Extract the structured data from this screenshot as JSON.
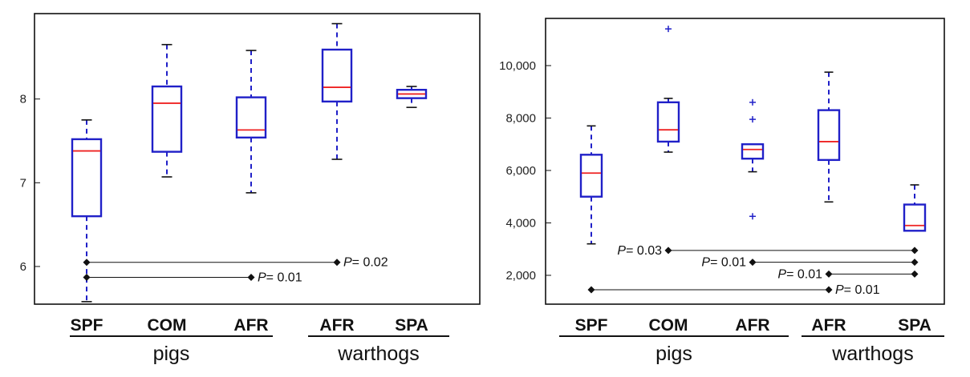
{
  "chart_data": [
    {
      "type": "box",
      "ylim": [
        5.55,
        9.02
      ],
      "yticks": [
        {
          "value": 6,
          "label": "6"
        },
        {
          "value": 7,
          "label": "7"
        },
        {
          "value": 8,
          "label": "8"
        }
      ],
      "categories": [
        "SPF",
        "COM",
        "AFR",
        "AFR",
        "SPA"
      ],
      "groups": [
        {
          "label": "pigs",
          "from": 0,
          "to": 2
        },
        {
          "label": "warthogs",
          "from": 3,
          "to": 4
        }
      ],
      "boxes": [
        {
          "whisker_low": 5.58,
          "q1": 6.6,
          "median": 7.38,
          "q3": 7.52,
          "whisker_high": 7.75,
          "outliers": []
        },
        {
          "whisker_low": 7.07,
          "q1": 7.37,
          "median": 7.95,
          "q3": 8.15,
          "whisker_high": 8.65,
          "outliers": []
        },
        {
          "whisker_low": 6.88,
          "q1": 7.54,
          "median": 7.63,
          "q3": 8.02,
          "whisker_high": 8.58,
          "outliers": []
        },
        {
          "whisker_low": 7.28,
          "q1": 7.97,
          "median": 8.14,
          "q3": 8.59,
          "whisker_high": 8.9,
          "outliers": []
        },
        {
          "whisker_low": 7.9,
          "q1": 8.01,
          "median": 8.06,
          "q3": 8.11,
          "whisker_high": 8.15,
          "outliers": []
        }
      ],
      "comparisons": [
        {
          "from": 0,
          "to": 3,
          "y": 6.05,
          "p_prefix": "P",
          "p_value": "= 0.02",
          "label_side": "right"
        },
        {
          "from": 0,
          "to": 2,
          "y": 5.87,
          "p_prefix": "P",
          "p_value": "= 0.01",
          "label_side": "right"
        }
      ]
    },
    {
      "type": "box",
      "ylim": [
        900,
        11800
      ],
      "yticks": [
        {
          "value": 2000,
          "label": "2,000"
        },
        {
          "value": 4000,
          "label": "4,000"
        },
        {
          "value": 6000,
          "label": "6,000"
        },
        {
          "value": 8000,
          "label": "8,000"
        },
        {
          "value": 10000,
          "label": "10,000"
        }
      ],
      "categories": [
        "SPF",
        "COM",
        "AFR",
        "AFR",
        "SPA"
      ],
      "groups": [
        {
          "label": "pigs",
          "from": 0,
          "to": 2
        },
        {
          "label": "warthogs",
          "from": 3,
          "to": 4
        }
      ],
      "boxes": [
        {
          "whisker_low": 3200,
          "q1": 5000,
          "median": 5900,
          "q3": 6600,
          "whisker_high": 7700,
          "outliers": []
        },
        {
          "whisker_low": 6700,
          "q1": 7100,
          "median": 7550,
          "q3": 8600,
          "whisker_high": 8750,
          "outliers": [
            11400
          ]
        },
        {
          "whisker_low": 5950,
          "q1": 6450,
          "median": 6800,
          "q3": 7000,
          "whisker_high": 7000,
          "outliers": [
            8600,
            7950,
            4250
          ]
        },
        {
          "whisker_low": 4800,
          "q1": 6400,
          "median": 7100,
          "q3": 8300,
          "whisker_high": 9750,
          "outliers": []
        },
        {
          "whisker_low": 3700,
          "q1": 3700,
          "median": 3900,
          "q3": 4700,
          "whisker_high": 5450,
          "outliers": []
        }
      ],
      "comparisons": [
        {
          "from": 1,
          "to": 4,
          "y": 2950,
          "p_prefix": "P",
          "p_value": "= 0.03",
          "label_side": "left"
        },
        {
          "from": 2,
          "to": 4,
          "y": 2500,
          "p_prefix": "P",
          "p_value": "= 0.01",
          "label_side": "left"
        },
        {
          "from": 3,
          "to": 4,
          "y": 2050,
          "p_prefix": "P",
          "p_value": "= 0.01",
          "label_side": "left"
        },
        {
          "from": 0,
          "to": 3,
          "y": 1450,
          "p_prefix": "P",
          "p_value": "= 0.01",
          "label_side": "right"
        }
      ]
    }
  ]
}
